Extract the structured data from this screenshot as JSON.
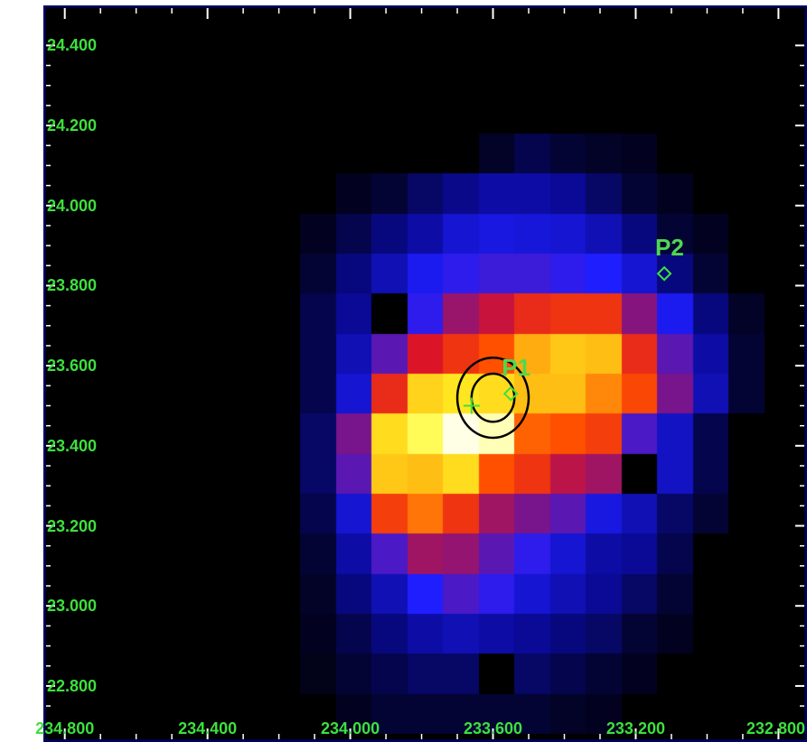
{
  "chart_data": {
    "type": "heatmap",
    "colormap": "heat (black-blue-red-yellow-white)",
    "colors": {
      "frame": "#000066",
      "labels": "#3de03d",
      "contours": "#000000",
      "source_markers": "#3de03d"
    },
    "xlim": [
      234.86,
      232.72
    ],
    "ylim": [
      22.66,
      24.5
    ],
    "x_ticks": [
      234.8,
      234.4,
      234.0,
      233.6,
      233.2,
      232.8
    ],
    "x_tick_labels": [
      "234.800",
      "234.400",
      "234.000",
      "233.600",
      "233.200",
      "232.800"
    ],
    "y_ticks": [
      24.4,
      24.2,
      24.0,
      23.8,
      23.6,
      23.4,
      23.2,
      23.0,
      22.8
    ],
    "y_tick_labels": [
      "24.400",
      "24.200",
      "24.000",
      "23.800",
      "23.600",
      "23.400",
      "23.200",
      "23.000",
      "22.800"
    ],
    "pixel_size": 0.1,
    "grid_x_start": 234.84,
    "grid_y_start": 24.48,
    "intensity": [
      [
        0,
        0,
        0,
        0,
        0,
        0,
        0,
        0,
        0,
        0,
        0,
        0,
        0,
        0,
        0,
        0,
        0,
        0,
        0,
        0
      ],
      [
        0,
        0,
        0,
        0,
        0,
        0,
        0,
        0,
        0,
        0,
        0,
        0,
        0,
        0,
        0,
        0,
        0,
        0,
        0,
        0
      ],
      [
        0,
        0,
        0,
        0,
        0,
        0,
        0,
        0,
        0,
        0,
        0,
        0,
        0,
        0,
        0,
        0,
        0,
        0,
        0,
        0
      ],
      [
        0,
        0,
        0,
        0,
        0,
        0,
        0,
        0,
        0,
        0,
        0,
        0,
        0.05,
        0.08,
        0.06,
        0.05,
        0.04,
        0,
        0,
        0
      ],
      [
        0,
        0,
        0,
        0,
        0,
        0,
        0,
        0,
        0.04,
        0.06,
        0.1,
        0.13,
        0.16,
        0.16,
        0.14,
        0.1,
        0.06,
        0.04,
        0,
        0
      ],
      [
        0,
        0,
        0,
        0,
        0,
        0,
        0,
        0.04,
        0.08,
        0.12,
        0.16,
        0.22,
        0.24,
        0.23,
        0.22,
        0.18,
        0.12,
        0.06,
        0.04,
        0
      ],
      [
        0,
        0,
        0,
        0,
        0,
        0,
        0,
        0.06,
        0.12,
        0.18,
        0.26,
        0.3,
        0.32,
        0.32,
        0.3,
        0.28,
        0.22,
        0.12,
        0.06,
        0
      ],
      [
        0,
        0,
        0,
        0,
        0,
        0,
        0,
        0.08,
        0.14,
        0,
        0.3,
        0.45,
        0.52,
        0.6,
        0.62,
        0.62,
        0.42,
        0.26,
        0.12,
        0.05
      ],
      [
        0,
        0,
        0,
        0,
        0,
        0,
        0,
        0.08,
        0.18,
        0.36,
        0.55,
        0.62,
        0.68,
        0.78,
        0.82,
        0.8,
        0.6,
        0.36,
        0.16,
        0.06
      ],
      [
        0,
        0,
        0,
        0,
        0,
        0,
        0,
        0.08,
        0.22,
        0.6,
        0.84,
        0.88,
        0.86,
        0.8,
        0.8,
        0.74,
        0.66,
        0.4,
        0.18,
        0.06
      ],
      [
        0,
        0,
        0,
        0,
        0,
        0,
        0,
        0.1,
        0.4,
        0.86,
        0.94,
        1.0,
        0.98,
        0.7,
        0.68,
        0.64,
        0.34,
        0.2,
        0.08,
        0
      ],
      [
        0,
        0,
        0,
        0,
        0,
        0,
        0,
        0.1,
        0.36,
        0.82,
        0.8,
        0.86,
        0.68,
        0.62,
        0.5,
        0.46,
        0,
        0.2,
        0.08,
        0
      ],
      [
        0,
        0,
        0,
        0,
        0,
        0,
        0,
        0.08,
        0.22,
        0.64,
        0.72,
        0.62,
        0.46,
        0.4,
        0.36,
        0.24,
        0.18,
        0.1,
        0.06,
        0
      ],
      [
        0,
        0,
        0,
        0,
        0,
        0,
        0,
        0.06,
        0.16,
        0.34,
        0.46,
        0.44,
        0.36,
        0.3,
        0.22,
        0.16,
        0.14,
        0.08,
        0,
        0
      ],
      [
        0,
        0,
        0,
        0,
        0,
        0,
        0,
        0.05,
        0.12,
        0.18,
        0.28,
        0.34,
        0.3,
        0.22,
        0.18,
        0.14,
        0.1,
        0.06,
        0,
        0
      ],
      [
        0,
        0,
        0,
        0,
        0,
        0,
        0,
        0.04,
        0.08,
        0.12,
        0.16,
        0.18,
        0.16,
        0.14,
        0.12,
        0.1,
        0.06,
        0.04,
        0,
        0
      ],
      [
        0,
        0,
        0,
        0,
        0,
        0,
        0,
        0.03,
        0.06,
        0.08,
        0.1,
        0.1,
        0,
        0.1,
        0.08,
        0.06,
        0.04,
        0,
        0,
        0
      ],
      [
        0,
        0,
        0,
        0,
        0,
        0,
        0,
        0,
        0.04,
        0.06,
        0.06,
        0.06,
        0.06,
        0.06,
        0.05,
        0.04,
        0,
        0,
        0,
        0
      ],
      [
        0,
        0,
        0,
        0,
        0,
        0,
        0,
        0,
        0,
        0,
        0,
        0,
        0,
        0,
        0,
        0,
        0,
        0,
        0,
        0
      ],
      [
        0,
        0,
        0,
        0,
        0,
        0,
        0,
        0,
        0,
        0,
        0,
        0,
        0,
        0,
        0,
        0,
        0,
        0,
        0,
        0
      ]
    ],
    "sources": [
      {
        "label": "P1",
        "ra": 233.55,
        "dec": 23.53
      },
      {
        "label": "P2",
        "ra": 233.12,
        "dec": 23.83
      }
    ],
    "contour_center": {
      "ra": 233.6,
      "dec": 23.52
    },
    "contour_radii_deg": [
      0.06,
      0.1
    ],
    "cross_marker": {
      "ra": 233.66,
      "dec": 23.5
    }
  }
}
